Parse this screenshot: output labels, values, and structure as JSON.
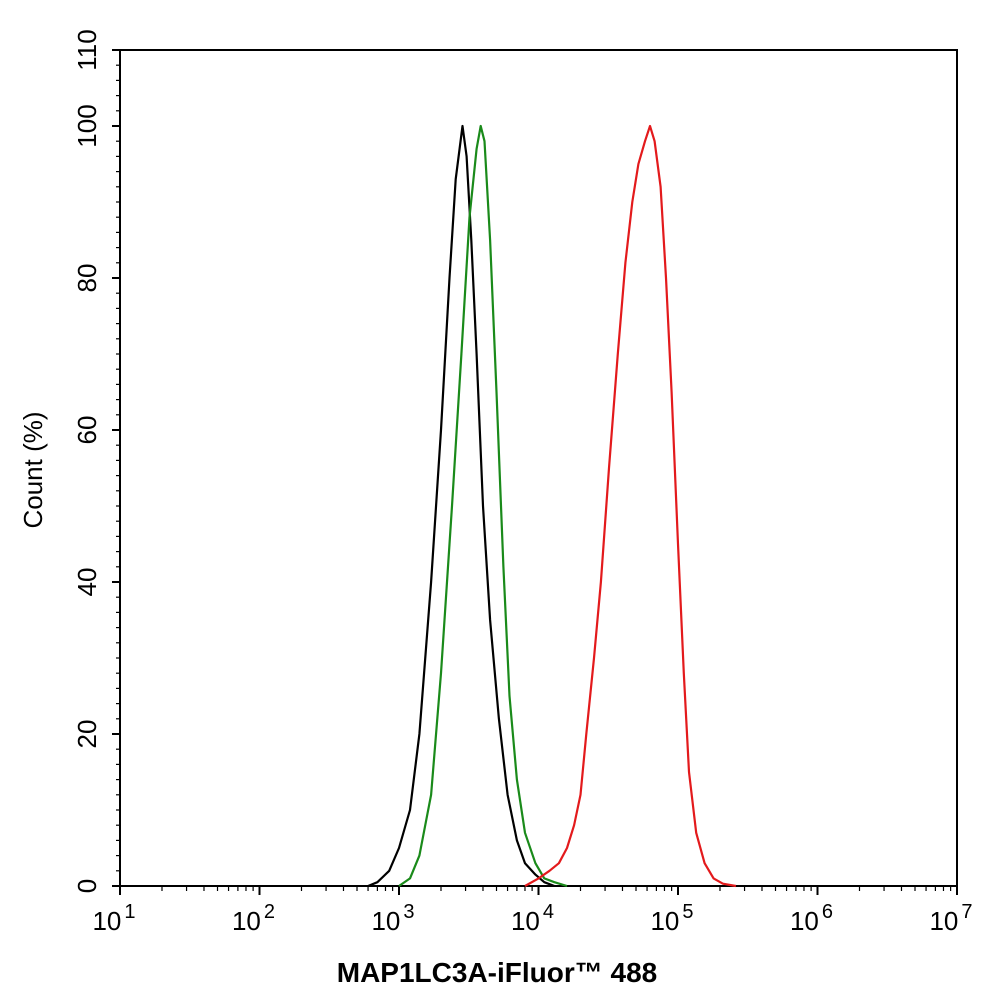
{
  "chart_data": {
    "type": "line",
    "title": "",
    "xlabel": "MAP1LC3A-iFluor™ 488",
    "ylabel": "Count (%)",
    "x_scale": "log",
    "xlim": [
      10,
      10000000
    ],
    "ylim": [
      0,
      110
    ],
    "grid": false,
    "legend": "none",
    "x_ticks": [
      {
        "value": 10,
        "base": "10",
        "exp": "1"
      },
      {
        "value": 100,
        "base": "10",
        "exp": "2"
      },
      {
        "value": 1000,
        "base": "10",
        "exp": "3"
      },
      {
        "value": 10000,
        "base": "10",
        "exp": "4"
      },
      {
        "value": 100000,
        "base": "10",
        "exp": "5"
      },
      {
        "value": 1000000,
        "base": "10",
        "exp": "6"
      },
      {
        "value": 10000000,
        "base": "10",
        "exp": "7"
      }
    ],
    "y_ticks": [
      {
        "value": 0,
        "label": "0"
      },
      {
        "value": 20,
        "label": "20"
      },
      {
        "value": 40,
        "label": "40"
      },
      {
        "value": 60,
        "label": "60"
      },
      {
        "value": 80,
        "label": "80"
      },
      {
        "value": 100,
        "label": "100"
      },
      {
        "value": 110,
        "label": "110"
      }
    ],
    "series": [
      {
        "color": "#000000",
        "points": [
          [
            600,
            0
          ],
          [
            700,
            0.5
          ],
          [
            850,
            2
          ],
          [
            1000,
            5
          ],
          [
            1200,
            10
          ],
          [
            1400,
            20
          ],
          [
            1700,
            40
          ],
          [
            2000,
            60
          ],
          [
            2300,
            80
          ],
          [
            2550,
            93
          ],
          [
            2850,
            100
          ],
          [
            3050,
            96
          ],
          [
            3300,
            85
          ],
          [
            3600,
            70
          ],
          [
            4000,
            50
          ],
          [
            4500,
            35
          ],
          [
            5200,
            22
          ],
          [
            6000,
            12
          ],
          [
            7000,
            6
          ],
          [
            8000,
            3
          ],
          [
            9500,
            1.5
          ],
          [
            11000,
            0.5
          ],
          [
            13000,
            0
          ]
        ]
      },
      {
        "color": "#1a8a1a",
        "points": [
          [
            1000,
            0
          ],
          [
            1200,
            1
          ],
          [
            1400,
            4
          ],
          [
            1700,
            12
          ],
          [
            2000,
            28
          ],
          [
            2400,
            50
          ],
          [
            2800,
            70
          ],
          [
            3200,
            88
          ],
          [
            3600,
            97
          ],
          [
            3850,
            100
          ],
          [
            4100,
            98
          ],
          [
            4500,
            85
          ],
          [
            5000,
            65
          ],
          [
            5600,
            42
          ],
          [
            6200,
            25
          ],
          [
            7000,
            14
          ],
          [
            8000,
            7
          ],
          [
            9500,
            3
          ],
          [
            11000,
            1
          ],
          [
            13000,
            0.5
          ],
          [
            16000,
            0
          ]
        ]
      },
      {
        "color": "#e31a1c",
        "points": [
          [
            8000,
            0
          ],
          [
            10000,
            1
          ],
          [
            12000,
            2
          ],
          [
            14000,
            3
          ],
          [
            16000,
            5
          ],
          [
            18000,
            8
          ],
          [
            20000,
            12
          ],
          [
            22000,
            20
          ],
          [
            25000,
            30
          ],
          [
            28000,
            40
          ],
          [
            32000,
            55
          ],
          [
            37000,
            70
          ],
          [
            42000,
            82
          ],
          [
            47000,
            90
          ],
          [
            52000,
            95
          ],
          [
            58000,
            98
          ],
          [
            63000,
            100
          ],
          [
            68000,
            98
          ],
          [
            75000,
            92
          ],
          [
            82000,
            80
          ],
          [
            90000,
            65
          ],
          [
            100000,
            45
          ],
          [
            110000,
            28
          ],
          [
            120000,
            15
          ],
          [
            135000,
            7
          ],
          [
            155000,
            3
          ],
          [
            180000,
            1
          ],
          [
            210000,
            0.3
          ],
          [
            260000,
            0
          ]
        ]
      }
    ]
  }
}
